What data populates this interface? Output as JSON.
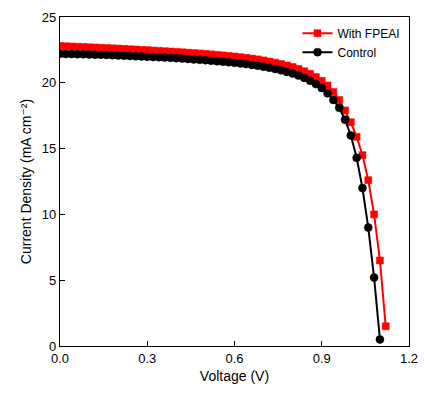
{
  "chart_data": {
    "type": "line",
    "x_label": "Voltage (V)",
    "y_label": "Current Density (mA cm⁻²)",
    "x": [
      0,
      0.02,
      0.04,
      0.06,
      0.08,
      0.1,
      0.12,
      0.14,
      0.16,
      0.18,
      0.2,
      0.22,
      0.24,
      0.26,
      0.28,
      0.3,
      0.32,
      0.34,
      0.36,
      0.38,
      0.4,
      0.42,
      0.44,
      0.46,
      0.48,
      0.5,
      0.52,
      0.54,
      0.56,
      0.58,
      0.6,
      0.62,
      0.64,
      0.66,
      0.68,
      0.7,
      0.72,
      0.74,
      0.76,
      0.78,
      0.8,
      0.82,
      0.84,
      0.86,
      0.88,
      0.9,
      0.92,
      0.94,
      0.96,
      0.98,
      1.0,
      1.02,
      1.04,
      1.06,
      1.08,
      1.1,
      1.12
    ],
    "series": [
      {
        "name": "With FPEAI",
        "color": "#ff0000",
        "marker": "square",
        "line_style": "solid",
        "values": [
          22.8,
          22.78,
          22.76,
          22.74,
          22.72,
          22.7,
          22.68,
          22.66,
          22.64,
          22.62,
          22.6,
          22.58,
          22.55,
          22.53,
          22.5,
          22.48,
          22.45,
          22.43,
          22.4,
          22.38,
          22.35,
          22.32,
          22.29,
          22.26,
          22.23,
          22.2,
          22.16,
          22.12,
          22.08,
          22.04,
          22.0,
          21.95,
          21.9,
          21.84,
          21.78,
          21.7,
          21.62,
          21.53,
          21.43,
          21.32,
          21.2,
          21.05,
          20.88,
          20.68,
          20.44,
          20.15,
          19.8,
          19.3,
          18.7,
          17.9,
          17.0,
          15.9,
          14.5,
          12.6,
          10.0,
          6.5,
          1.5
        ]
      },
      {
        "name": "Control",
        "color": "#000000",
        "marker": "circle",
        "line_style": "solid",
        "values": [
          22.2,
          22.19,
          22.18,
          22.17,
          22.16,
          22.15,
          22.14,
          22.13,
          22.12,
          22.1,
          22.08,
          22.06,
          22.04,
          22.02,
          22.0,
          21.98,
          21.96,
          21.94,
          21.92,
          21.9,
          21.87,
          21.84,
          21.81,
          21.78,
          21.75,
          21.72,
          21.68,
          21.64,
          21.6,
          21.56,
          21.52,
          21.47,
          21.42,
          21.36,
          21.3,
          21.22,
          21.14,
          21.05,
          20.95,
          20.83,
          20.7,
          20.55,
          20.37,
          20.15,
          19.9,
          19.6,
          19.2,
          18.7,
          18.1,
          17.2,
          16.0,
          14.3,
          12.0,
          9.0,
          5.2,
          0.5,
          null
        ]
      }
    ],
    "xlim": [
      0,
      1.2
    ],
    "xticks": [
      {
        "value": 0,
        "label": "0.0"
      },
      0.3,
      0.6,
      0.9,
      1.2
    ],
    "ylim": [
      0,
      25
    ],
    "yticks": [
      0,
      5,
      10,
      15,
      20,
      25
    ],
    "grid": false,
    "legend": "upper right"
  }
}
